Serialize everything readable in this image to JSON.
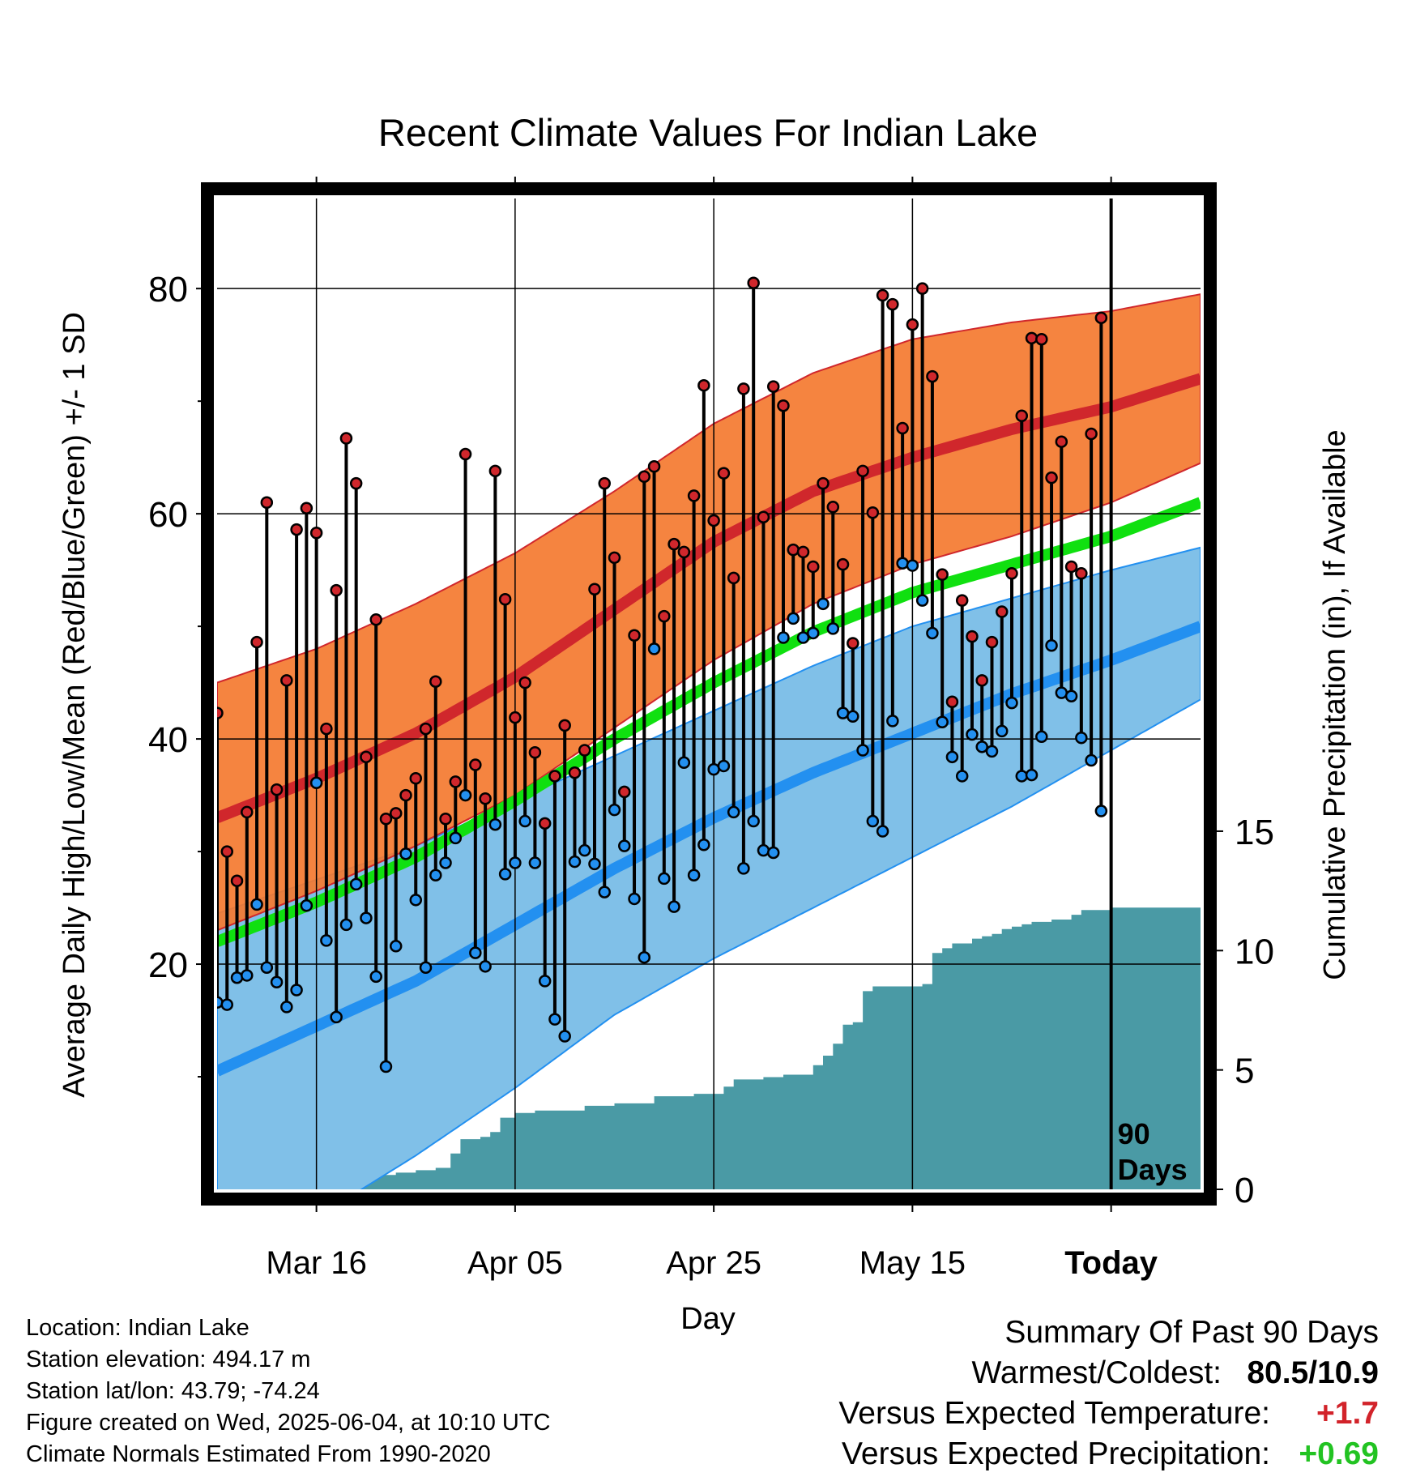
{
  "chart_data": {
    "type": "line",
    "title": "Recent Climate Values For Indian Lake",
    "xlabel": "Day",
    "ylabel": "Average Daily High/Low/Mean (Red/Blue/Green) +/- 1 SD",
    "y2label": "Cumulative Precipitation (in), If Available",
    "ylim": [
      0,
      88
    ],
    "y2lim": [
      0,
      41.5
    ],
    "yticks": [
      20,
      40,
      60,
      80
    ],
    "y2ticks": [
      0,
      5,
      10,
      15
    ],
    "xtick_labels": [
      {
        "day": 10,
        "label": "Mar 16"
      },
      {
        "day": 30,
        "label": "Apr 05"
      },
      {
        "day": 50,
        "label": "Apr 25"
      },
      {
        "day": 70,
        "label": "May 15"
      },
      {
        "day": 90,
        "label": "Today"
      }
    ],
    "xlim": [
      0,
      99
    ],
    "today_day": 90,
    "window_label_line1": "90",
    "window_label_line2": "Days",
    "grid": true,
    "colors": {
      "high_band": "#f47a30",
      "high_line": "#d0272c",
      "low_band": "#80c0e8",
      "low_line": "#2390f0",
      "mean_line": "#10e010",
      "precip": "#4a9aa5",
      "high_marker": "#d0272c",
      "low_marker": "#2390f0",
      "frame": "#000000"
    },
    "normals": {
      "days": [
        0,
        10,
        20,
        30,
        40,
        50,
        60,
        70,
        80,
        90,
        99
      ],
      "high_mean": [
        33,
        36.5,
        40.5,
        45.5,
        51.5,
        57.5,
        62,
        65,
        67.5,
        69.5,
        72
      ],
      "high_upper": [
        45,
        48,
        52,
        56.5,
        62,
        68,
        72.5,
        75.5,
        77,
        78,
        79.5
      ],
      "high_lower": [
        23,
        26.5,
        30.5,
        35,
        41,
        47,
        52,
        55.5,
        58,
        61,
        64.5
      ],
      "low_mean": [
        10.5,
        14.5,
        18.5,
        23.5,
        28.5,
        33,
        37,
        40.5,
        44,
        47,
        50
      ],
      "low_upper": [
        24.5,
        27.5,
        30.5,
        34.5,
        38.5,
        42.5,
        46.5,
        50,
        52.5,
        55,
        57
      ],
      "low_lower": [
        -7,
        -2.5,
        3,
        9,
        15.5,
        20.5,
        25,
        29.5,
        34,
        39,
        43.5
      ],
      "mean": [
        22,
        25.5,
        29.5,
        34.5,
        40,
        45,
        49.5,
        53,
        55.5,
        58,
        61
      ]
    },
    "series": [
      {
        "name": "High",
        "values": [
          42.3,
          30,
          27.4,
          33.5,
          48.6,
          61,
          35.5,
          45.2,
          58.6,
          60.5,
          58.3,
          40.9,
          53.2,
          66.7,
          62.7,
          38.4,
          50.6,
          32.9,
          33.4,
          35,
          36.5,
          40.9,
          45.1,
          32.9,
          36.2,
          65.3,
          37.7,
          34.7,
          63.8,
          52.4,
          41.9,
          45,
          38.8,
          32.5,
          36.7,
          41.2,
          37,
          39,
          53.3,
          62.7,
          56.1,
          35.3,
          49.2,
          63.3,
          64.2,
          50.9,
          57.3,
          56.6,
          61.6,
          71.4,
          59.4,
          63.6,
          54.3,
          71.1,
          80.5,
          59.7,
          71.3,
          69.6,
          56.8,
          56.6,
          55.3,
          62.7,
          60.6,
          55.5,
          48.5,
          63.8,
          60.1,
          79.4,
          78.6,
          67.6,
          76.8,
          80.0,
          72.2,
          54.6,
          43.3,
          52.3,
          49.1,
          45.2,
          48.6,
          51.3,
          54.7,
          68.7,
          75.6,
          75.5,
          63.2,
          66.4,
          55.3,
          54.7,
          67.1,
          77.4
        ],
        "lows": [
          16.6,
          16.4,
          18.8,
          19,
          25.3,
          19.7,
          18.4,
          16.2,
          17.7,
          25.2,
          36.1,
          22.1,
          15.3,
          23.5,
          27.1,
          24.1,
          18.9,
          10.9,
          21.6,
          29.8,
          25.7,
          19.7,
          27.9,
          29,
          31.2,
          35,
          21,
          19.8,
          32.4,
          28,
          29,
          32.7,
          29,
          18.5,
          15.1,
          13.6,
          29.1,
          30.1,
          28.9,
          26.4,
          33.7,
          30.5,
          25.8,
          20.6,
          48,
          27.6,
          25.1,
          37.9,
          27.9,
          30.6,
          37.3,
          37.6,
          33.5,
          28.5,
          32.7,
          30.1,
          29.9,
          49,
          50.7,
          49,
          49.4,
          52,
          49.8,
          42.3,
          42,
          39,
          32.7,
          31.8,
          41.6,
          55.6,
          55.4,
          52.3,
          49.4,
          41.5,
          38.4,
          36.7,
          40.4,
          39.3,
          38.9,
          40.7,
          43.2,
          36.7,
          36.8,
          40.2,
          48.3,
          44.1,
          43.8,
          40.1,
          38.1,
          33.6
        ]
      },
      {
        "name": "Cumulative Precipitation",
        "x": [
          10,
          12,
          14,
          16,
          18,
          20,
          22,
          23.5,
          24.5,
          26.5,
          27.5,
          28.5,
          30,
          32,
          35,
          37,
          40,
          43,
          44,
          47,
          48,
          49,
          50,
          51,
          52,
          54,
          55,
          57,
          58,
          60,
          61,
          62,
          63,
          64,
          65,
          66,
          70,
          71,
          72,
          73,
          74,
          75,
          76,
          77,
          78,
          79,
          80,
          81,
          82,
          84,
          85,
          86,
          87,
          90,
          99
        ],
        "values": [
          0.4,
          0.4,
          0.5,
          0.6,
          0.7,
          0.8,
          0.9,
          1.5,
          2.1,
          2.2,
          2.4,
          3.0,
          3.2,
          3.3,
          3.3,
          3.5,
          3.6,
          3.6,
          3.9,
          3.9,
          4.0,
          4.0,
          4.0,
          4.3,
          4.6,
          4.6,
          4.7,
          4.8,
          4.8,
          5.2,
          5.6,
          6.1,
          6.9,
          7.0,
          8.3,
          8.5,
          8.5,
          8.6,
          9.9,
          10.1,
          10.3,
          10.3,
          10.5,
          10.6,
          10.7,
          10.9,
          11.0,
          11.1,
          11.2,
          11.3,
          11.3,
          11.5,
          11.7,
          11.8,
          11.8
        ]
      }
    ]
  },
  "footer": {
    "location": "Location: Indian Lake",
    "elevation": "Station elevation: 494.17 m",
    "latlon": "Station lat/lon: 43.79; -74.24",
    "created": "Figure created on Wed, 2025-06-04, at 10:10 UTC",
    "normals_note": "Climate Normals Estimated From 1990-2020"
  },
  "summary": {
    "heading": "Summary Of Past 90 Days",
    "warmest_label": "Warmest/Coldest:",
    "warmest_value": "80.5/10.9",
    "temp_label": "Versus Expected Temperature:",
    "temp_value": "+1.7",
    "precip_label": "Versus Expected Precipitation:",
    "precip_value": "+0.69"
  }
}
